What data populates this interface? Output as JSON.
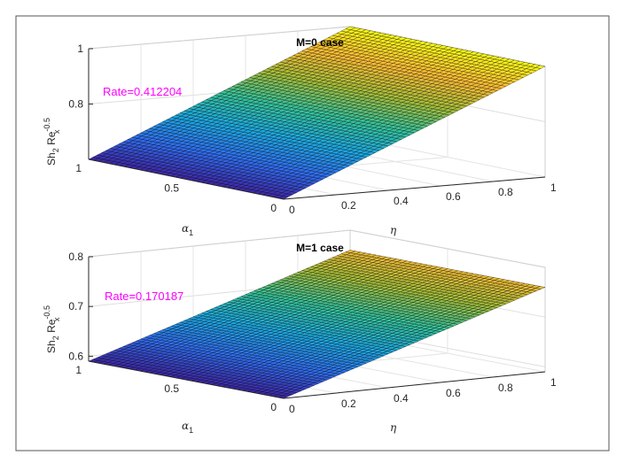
{
  "colors": {
    "frame": "#555555",
    "annotation": "#ff00ff",
    "mesh_edge": "#000000",
    "colormap": [
      "#3e26a8",
      "#2f6ef0",
      "#1ca8e0",
      "#35c39b",
      "#a6be38",
      "#fbbb35",
      "#f9fb15"
    ]
  },
  "chart_data": [
    {
      "type": "surface",
      "title": "M=0 case",
      "annotation": "Rate=0.412204",
      "zlabel": {
        "base": "Sh",
        "base_sub": "2",
        "mid": " Re",
        "sup": "-0.5",
        "sub": "x"
      },
      "xlabel": {
        "sym": "α",
        "sub": "1"
      },
      "ylabel": "η",
      "alpha1_range": [
        0,
        1
      ],
      "eta_range": [
        0,
        1
      ],
      "z_range": [
        0.6,
        1.0
      ],
      "z_at_eta_0": 0.6,
      "z_at_eta_1": 1.0,
      "alpha1_ticks": [
        "0",
        "0.5",
        "1"
      ],
      "eta_ticks": [
        "0",
        "0.2",
        "0.4",
        "0.6",
        "0.8",
        "1"
      ],
      "z_ticks": [
        {
          "value": 0.8,
          "label": "0.8"
        },
        {
          "value": 1.0,
          "label": "1"
        }
      ],
      "grid": true
    },
    {
      "type": "surface",
      "title": "M=1 case",
      "annotation": "Rate=0.170187",
      "zlabel": {
        "base": "Sh",
        "base_sub": "2",
        "mid": " Re",
        "sup": "-0.5",
        "sub": "x"
      },
      "xlabel": {
        "sym": "α",
        "sub": "1"
      },
      "ylabel": "η",
      "alpha1_range": [
        0,
        1
      ],
      "eta_range": [
        0,
        1
      ],
      "z_range": [
        0.59,
        0.8
      ],
      "z_at_eta_0": 0.59,
      "z_at_eta_1": 0.76,
      "alpha1_ticks": [
        "0",
        "0.5",
        "1"
      ],
      "eta_ticks": [
        "0",
        "0.2",
        "0.4",
        "0.6",
        "0.8",
        "1"
      ],
      "z_ticks": [
        {
          "value": 0.6,
          "label": "0.6"
        },
        {
          "value": 0.7,
          "label": "0.7"
        },
        {
          "value": 0.8,
          "label": "0.8"
        }
      ],
      "grid": true
    }
  ]
}
